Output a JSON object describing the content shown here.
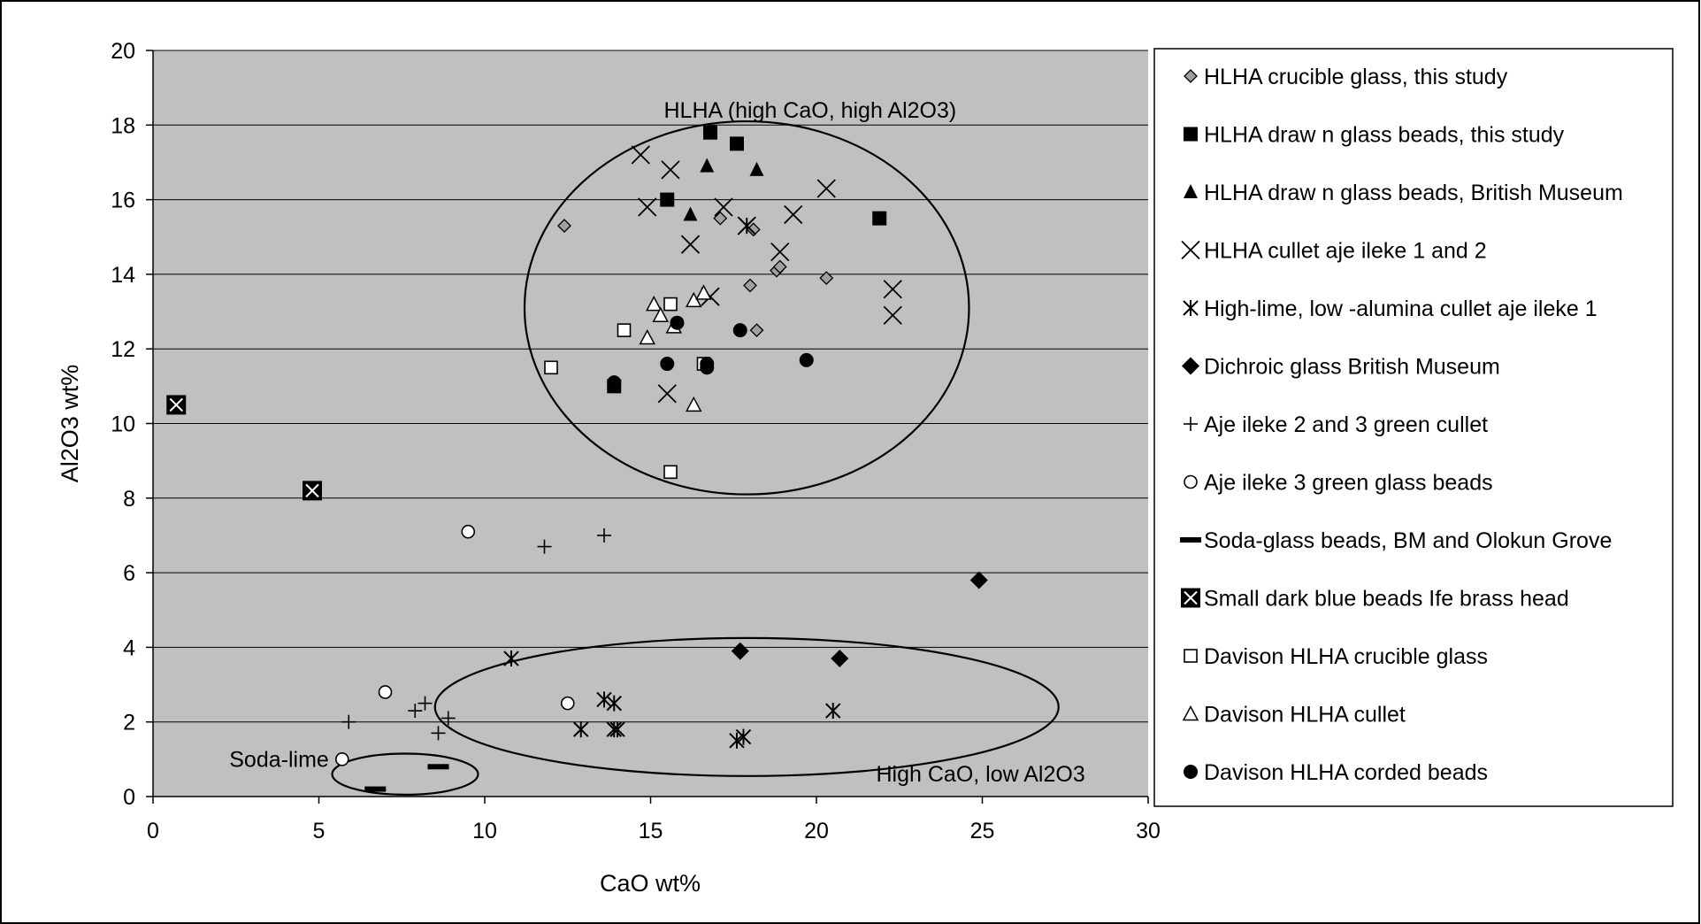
{
  "chart_data": {
    "type": "scatter",
    "title": "",
    "xlabel": "CaO wt%",
    "ylabel": "Al2O3 wt%",
    "xlim": [
      0,
      30
    ],
    "ylim": [
      0,
      20
    ],
    "xticks": [
      0,
      5,
      10,
      15,
      20,
      25,
      30
    ],
    "yticks": [
      0,
      2,
      4,
      6,
      8,
      10,
      12,
      14,
      16,
      18,
      20
    ],
    "grid": "horizontal",
    "plot_background": "#c0c0c0",
    "legend_position": "right",
    "series": [
      {
        "name": "HLHA crucible glass, this study",
        "marker": "diamond-gray",
        "points": [
          [
            12.4,
            15.3
          ],
          [
            17.1,
            15.5
          ],
          [
            18.1,
            15.2
          ],
          [
            18.8,
            14.1
          ],
          [
            18.9,
            14.2
          ],
          [
            20.3,
            13.9
          ],
          [
            18.0,
            13.7
          ],
          [
            18.2,
            12.5
          ]
        ]
      },
      {
        "name": "HLHA draw n glass beads, this study",
        "marker": "square-filled",
        "points": [
          [
            16.8,
            17.8
          ],
          [
            17.6,
            17.5
          ],
          [
            15.5,
            16.0
          ],
          [
            21.9,
            15.5
          ],
          [
            13.9,
            11.0
          ]
        ]
      },
      {
        "name": "HLHA draw n glass beads, British Museum",
        "marker": "triangle-filled",
        "points": [
          [
            16.7,
            16.9
          ],
          [
            18.2,
            16.8
          ],
          [
            16.2,
            15.6
          ]
        ]
      },
      {
        "name": "HLHA cullet aje ileke 1 and 2",
        "marker": "x",
        "points": [
          [
            14.7,
            17.2
          ],
          [
            15.6,
            16.8
          ],
          [
            20.3,
            16.3
          ],
          [
            14.9,
            15.8
          ],
          [
            17.2,
            15.8
          ],
          [
            19.3,
            15.6
          ],
          [
            17.9,
            15.3
          ],
          [
            16.2,
            14.8
          ],
          [
            18.9,
            14.6
          ],
          [
            22.3,
            13.6
          ],
          [
            22.3,
            12.9
          ],
          [
            16.8,
            13.4
          ],
          [
            15.5,
            10.8
          ]
        ]
      },
      {
        "name": "High-lime, low -alumina cullet aje ileke 1",
        "marker": "asterisk",
        "points": [
          [
            17.9,
            15.3
          ],
          [
            10.8,
            3.7
          ],
          [
            13.6,
            2.6
          ],
          [
            13.9,
            2.5
          ],
          [
            12.9,
            1.8
          ],
          [
            13.9,
            1.8
          ],
          [
            14.0,
            1.8
          ],
          [
            17.6,
            1.5
          ],
          [
            17.8,
            1.6
          ],
          [
            20.5,
            2.3
          ]
        ]
      },
      {
        "name": "Dichroic glass British Museum",
        "marker": "diamond-filled",
        "points": [
          [
            24.9,
            5.8
          ],
          [
            17.7,
            3.9
          ],
          [
            20.7,
            3.7
          ]
        ]
      },
      {
        "name": "Aje ileke 2 and 3 green cullet",
        "marker": "plus",
        "points": [
          [
            11.8,
            6.7
          ],
          [
            13.6,
            7.0
          ],
          [
            5.9,
            2.0
          ],
          [
            7.9,
            2.3
          ],
          [
            8.2,
            2.5
          ],
          [
            8.9,
            2.1
          ],
          [
            8.6,
            1.7
          ]
        ]
      },
      {
        "name": "Aje ileke 3 green glass beads",
        "marker": "circle-open",
        "points": [
          [
            9.5,
            7.1
          ],
          [
            7.0,
            2.8
          ],
          [
            12.5,
            2.5
          ],
          [
            5.7,
            1.0
          ]
        ]
      },
      {
        "name": "Soda-glass beads, BM and Olokun Grove",
        "marker": "dash",
        "points": [
          [
            6.7,
            0.2
          ],
          [
            8.6,
            0.8
          ]
        ]
      },
      {
        "name": "Small dark blue beads Ife brass head",
        "marker": "square-x",
        "points": [
          [
            0.7,
            10.5
          ],
          [
            4.8,
            8.2
          ]
        ]
      },
      {
        "name": "Davison HLHA crucible glass",
        "marker": "square-open",
        "points": [
          [
            15.6,
            13.2
          ],
          [
            14.2,
            12.5
          ],
          [
            12.0,
            11.5
          ],
          [
            16.6,
            11.6
          ],
          [
            15.6,
            8.7
          ]
        ]
      },
      {
        "name": "Davison HLHA cullet",
        "marker": "triangle-open",
        "points": [
          [
            15.1,
            13.2
          ],
          [
            16.3,
            13.3
          ],
          [
            16.6,
            13.5
          ],
          [
            15.3,
            12.9
          ],
          [
            15.7,
            12.6
          ],
          [
            14.9,
            12.3
          ],
          [
            16.3,
            10.5
          ]
        ]
      },
      {
        "name": "Davison HLHA corded beads",
        "marker": "circle-filled",
        "points": [
          [
            15.8,
            12.7
          ],
          [
            17.7,
            12.5
          ],
          [
            13.9,
            11.1
          ],
          [
            15.5,
            11.6
          ],
          [
            16.7,
            11.6
          ],
          [
            16.7,
            11.5
          ],
          [
            19.7,
            11.7
          ]
        ]
      }
    ],
    "annotations": [
      {
        "text": "HLHA (high CaO, high Al2O3)",
        "x": 15.4,
        "y": 18.2
      },
      {
        "text": "Soda-lime",
        "x": 2.3,
        "y": 0.8
      },
      {
        "text": "High CaO, low Al2O3",
        "x": 21.8,
        "y": 0.4
      }
    ],
    "ellipses": [
      {
        "label": "HLHA",
        "cx": 17.9,
        "cy": 13.1,
        "rx": 6.7,
        "ry": 5.0
      },
      {
        "label": "High CaO, low Al2O3",
        "cx": 17.9,
        "cy": 2.4,
        "rx": 9.4,
        "ry": 1.85
      },
      {
        "label": "Soda-lime",
        "cx": 7.6,
        "cy": 0.6,
        "rx": 2.2,
        "ry": 0.55
      }
    ]
  }
}
